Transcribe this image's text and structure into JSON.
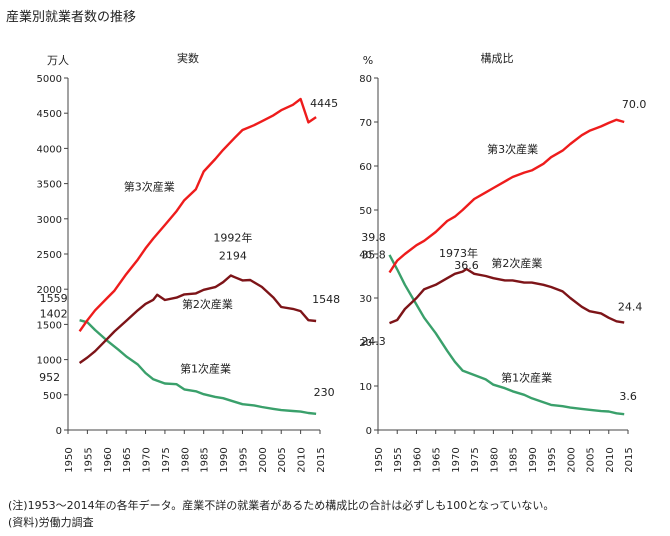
{
  "title": "産業別就業者数の推移",
  "notes": [
    "(注)1953〜2014年の各年データ。産業不詳の就業者があるため構成比の合計は必ずしも100となっていない。",
    "(資料)労働力調査"
  ],
  "colors": {
    "primary": "#3aa06b",
    "secondary": "#7d1418",
    "tertiary": "#ee1c1c"
  },
  "chart_data": [
    {
      "type": "line",
      "title": "実数",
      "ylabel": "万人",
      "xlim": [
        1950,
        2015
      ],
      "ylim": [
        0,
        5000
      ],
      "xticks": [
        1950,
        1955,
        1960,
        1965,
        1970,
        1975,
        1980,
        1985,
        1990,
        1995,
        2000,
        2005,
        2010,
        2015
      ],
      "yticks": [
        0,
        500,
        1000,
        1500,
        2000,
        2500,
        3000,
        3500,
        4000,
        4500,
        5000
      ],
      "series": [
        {
          "name": "第1次産業",
          "color": "#3aa06b",
          "x": [
            1953,
            1955,
            1957,
            1960,
            1963,
            1965,
            1968,
            1970,
            1972,
            1975,
            1978,
            1980,
            1983,
            1985,
            1988,
            1990,
            1993,
            1995,
            1998,
            2000,
            2003,
            2005,
            2008,
            2010,
            2012,
            2014
          ],
          "y": [
            1559,
            1530,
            1420,
            1273,
            1140,
            1046,
            930,
            810,
            720,
            661,
            650,
            577,
            550,
            509,
            470,
            451,
            400,
            367,
            350,
            326,
            300,
            282,
            270,
            262,
            241,
            230
          ]
        },
        {
          "name": "第2次産業",
          "color": "#7d1418",
          "x": [
            1953,
            1955,
            1957,
            1960,
            1962,
            1965,
            1968,
            1970,
            1972,
            1973,
            1975,
            1978,
            1980,
            1983,
            1985,
            1988,
            1990,
            1992,
            1993,
            1995,
            1997,
            2000,
            2003,
            2005,
            2008,
            2010,
            2012,
            2014
          ],
          "y": [
            952,
            1030,
            1120,
            1288,
            1400,
            1550,
            1700,
            1791,
            1850,
            1920,
            1847,
            1880,
            1926,
            1940,
            1992,
            2030,
            2099,
            2194,
            2170,
            2125,
            2130,
            2033,
            1880,
            1747,
            1720,
            1689,
            1560,
            1548
          ]
        },
        {
          "name": "第3次産業",
          "color": "#ee1c1c",
          "x": [
            1953,
            1955,
            1957,
            1960,
            1962,
            1965,
            1968,
            1970,
            1972,
            1975,
            1978,
            1980,
            1983,
            1985,
            1988,
            1990,
            1993,
            1995,
            1998,
            2000,
            2003,
            2005,
            2008,
            2010,
            2012,
            2014
          ],
          "y": [
            1402,
            1560,
            1700,
            1870,
            1980,
            2213,
            2420,
            2579,
            2720,
            2912,
            3110,
            3264,
            3420,
            3672,
            3850,
            3978,
            4150,
            4262,
            4330,
            4385,
            4470,
            4542,
            4620,
            4702,
            4370,
            4445
          ]
        }
      ],
      "annotations": [
        {
          "text": "第3次産業",
          "x": 1972,
          "y": 3200
        },
        {
          "text": "第2次産業",
          "x": 1987,
          "y": 1650
        },
        {
          "text": "第1次産業",
          "x": 1986,
          "y": 700
        },
        {
          "text": "4445",
          "x": 2014,
          "y": 4445
        },
        {
          "text": "1559",
          "x": 1953,
          "y": 1559
        },
        {
          "text": "1402",
          "x": 1953,
          "y": 1402
        },
        {
          "text": "952",
          "x": 1953,
          "y": 952
        },
        {
          "text": "1992年",
          "x": 1992,
          "y": 2194
        },
        {
          "text": "2194",
          "x": 1992,
          "y": 2194
        },
        {
          "text": "1548",
          "x": 2014,
          "y": 1548
        },
        {
          "text": "230",
          "x": 2014,
          "y": 230
        }
      ]
    },
    {
      "type": "line",
      "title": "構成比",
      "ylabel": "%",
      "xlim": [
        1950,
        2015
      ],
      "ylim": [
        0,
        80
      ],
      "xticks": [
        1950,
        1955,
        1960,
        1965,
        1970,
        1975,
        1980,
        1985,
        1990,
        1995,
        2000,
        2005,
        2010,
        2015
      ],
      "yticks": [
        0,
        10,
        20,
        30,
        40,
        50,
        60,
        70,
        80
      ],
      "series": [
        {
          "name": "第1次産業",
          "color": "#3aa06b",
          "x": [
            1953,
            1955,
            1957,
            1960,
            1962,
            1965,
            1968,
            1970,
            1972,
            1975,
            1978,
            1980,
            1983,
            1985,
            1988,
            1990,
            1993,
            1995,
            1998,
            2000,
            2003,
            2005,
            2008,
            2010,
            2012,
            2014
          ],
          "y": [
            39.8,
            36.5,
            33.0,
            28.5,
            25.5,
            22.0,
            18.0,
            15.5,
            13.5,
            12.5,
            11.5,
            10.3,
            9.5,
            8.8,
            8.0,
            7.2,
            6.3,
            5.7,
            5.4,
            5.1,
            4.8,
            4.6,
            4.3,
            4.2,
            3.8,
            3.6
          ]
        },
        {
          "name": "第2次産業",
          "color": "#7d1418",
          "x": [
            1953,
            1955,
            1957,
            1960,
            1962,
            1965,
            1968,
            1970,
            1972,
            1973,
            1975,
            1978,
            1980,
            1983,
            1985,
            1988,
            1990,
            1993,
            1995,
            1998,
            2000,
            2003,
            2005,
            2008,
            2010,
            2012,
            2014
          ],
          "y": [
            24.3,
            25.0,
            27.5,
            30.0,
            32.0,
            33.0,
            34.5,
            35.5,
            36.0,
            36.6,
            35.5,
            35.0,
            34.5,
            34.0,
            34.0,
            33.5,
            33.5,
            33.0,
            32.5,
            31.5,
            30.0,
            28.0,
            27.0,
            26.5,
            25.5,
            24.7,
            24.4
          ]
        },
        {
          "name": "第3次産業",
          "color": "#ee1c1c",
          "x": [
            1953,
            1955,
            1957,
            1960,
            1962,
            1965,
            1968,
            1970,
            1972,
            1975,
            1978,
            1980,
            1983,
            1985,
            1988,
            1990,
            1993,
            1995,
            1998,
            2000,
            2003,
            2005,
            2008,
            2010,
            2012,
            2014
          ],
          "y": [
            35.8,
            38.5,
            40.0,
            42.0,
            43.0,
            45.0,
            47.5,
            48.5,
            50.0,
            52.5,
            54.0,
            55.0,
            56.5,
            57.5,
            58.5,
            59.0,
            60.5,
            62.0,
            63.5,
            65.0,
            67.0,
            68.0,
            69.0,
            69.8,
            70.5,
            70.0
          ]
        }
      ],
      "annotations": [
        {
          "text": "第3次産業",
          "x": 1985,
          "y": 63
        },
        {
          "text": "第2次産業",
          "x": 1983,
          "y": 37
        },
        {
          "text": "第1次産業",
          "x": 1985,
          "y": 11
        },
        {
          "text": "70.0",
          "x": 2014,
          "y": 70.0
        },
        {
          "text": "39.8",
          "x": 1953,
          "y": 39.8
        },
        {
          "text": "35.8",
          "x": 1953,
          "y": 35.8
        },
        {
          "text": "24.3",
          "x": 1953,
          "y": 24.3
        },
        {
          "text": "1973年",
          "x": 1973,
          "y": 36.6
        },
        {
          "text": "36.6",
          "x": 1973,
          "y": 36.6
        },
        {
          "text": "24.4",
          "x": 2014,
          "y": 24.4
        },
        {
          "text": "3.6",
          "x": 2014,
          "y": 3.6
        }
      ]
    }
  ]
}
